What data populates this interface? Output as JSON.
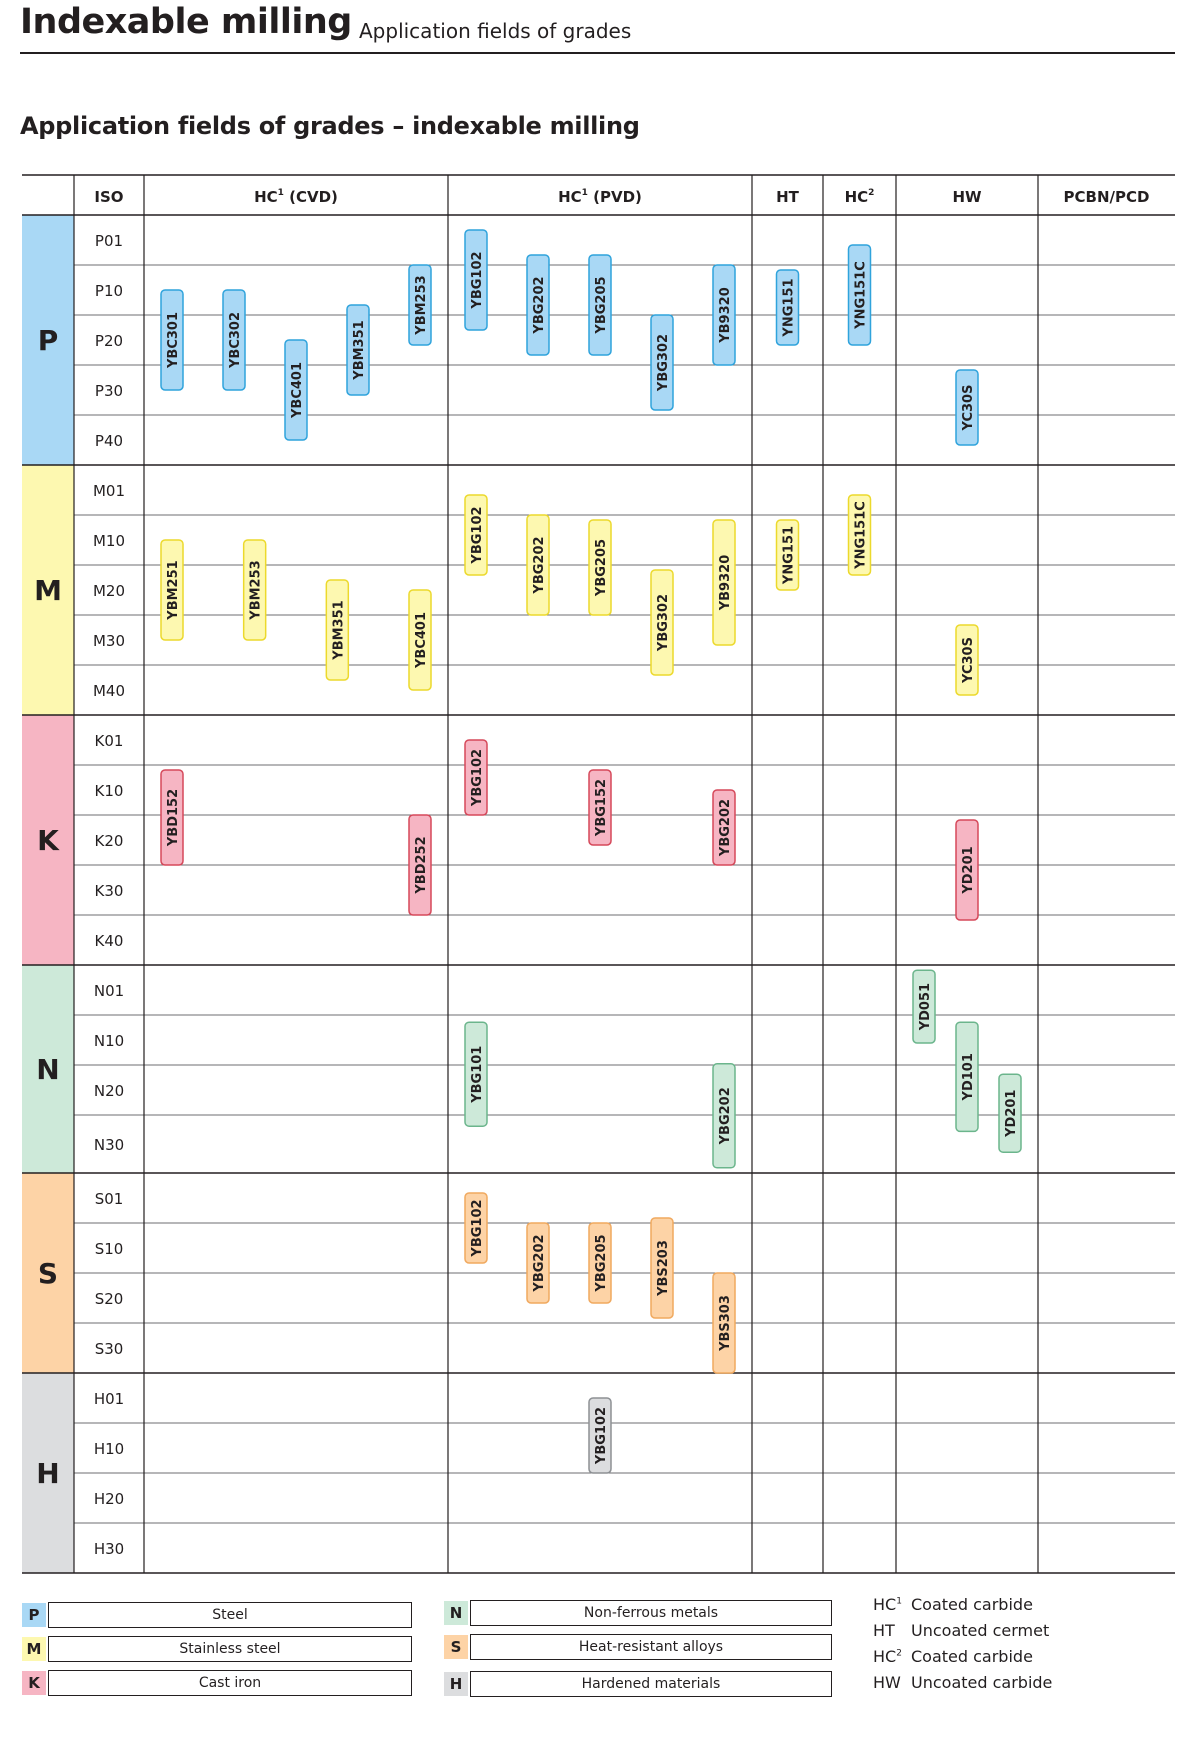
{
  "header": {
    "title": "Indexable milling",
    "subtitle": "Application fields of grades"
  },
  "section_title": "Application fields of grades – indexable milling",
  "colors": {
    "P": {
      "fill": "#a9d8f5",
      "stroke": "#2fa3dc"
    },
    "M": {
      "fill": "#fdf8b0",
      "stroke": "#ecd92c"
    },
    "K": {
      "fill": "#f6b5c3",
      "stroke": "#d5485a"
    },
    "N": {
      "fill": "#cde9d9",
      "stroke": "#6bb58c"
    },
    "S": {
      "fill": "#fdd3a6",
      "stroke": "#f0a95f"
    },
    "H": {
      "fill": "#dcdddf",
      "stroke": "#8d9094"
    }
  },
  "table": {
    "iso_header": "ISO",
    "columns": [
      {
        "label": "HC",
        "sup": "1",
        "suffix": " (CVD)"
      },
      {
        "label": "HC",
        "sup": "1",
        "suffix": " (PVD)"
      },
      {
        "label": "HT",
        "sup": "",
        "suffix": ""
      },
      {
        "label": "HC",
        "sup": "2",
        "suffix": ""
      },
      {
        "label": "HW",
        "sup": "",
        "suffix": ""
      },
      {
        "label": "PCBN/PCD",
        "sup": "",
        "suffix": ""
      }
    ],
    "groups": [
      {
        "letter": "P",
        "rows": [
          "P01",
          "P10",
          "P20",
          "P30",
          "P40"
        ]
      },
      {
        "letter": "M",
        "rows": [
          "M01",
          "M10",
          "M20",
          "M30",
          "M40"
        ]
      },
      {
        "letter": "K",
        "rows": [
          "K01",
          "K10",
          "K20",
          "K30",
          "K40"
        ]
      },
      {
        "letter": "N",
        "rows": [
          "N01",
          "N10",
          "N20",
          "N30"
        ]
      },
      {
        "letter": "S",
        "rows": [
          "S01",
          "S10",
          "S20",
          "S30"
        ]
      },
      {
        "letter": "H",
        "rows": [
          "H01",
          "H10",
          "H20",
          "H30"
        ]
      }
    ],
    "grades": [
      {
        "name": "YBC301",
        "group": "P",
        "col": 0,
        "start": 1.5,
        "end": 3.5
      },
      {
        "name": "YBC302",
        "group": "P",
        "col": 0,
        "start": 1.5,
        "end": 3.5
      },
      {
        "name": "YBC401",
        "group": "P",
        "col": 0,
        "start": 2.5,
        "end": 4.5
      },
      {
        "name": "YBM351",
        "group": "P",
        "col": 0,
        "start": 1.8,
        "end": 3.6
      },
      {
        "name": "YBM253",
        "group": "P",
        "col": 0,
        "start": 1.0,
        "end": 2.6
      },
      {
        "name": "YBG102",
        "group": "P",
        "col": 1,
        "start": 0.3,
        "end": 2.3
      },
      {
        "name": "YBG202",
        "group": "P",
        "col": 1,
        "start": 0.8,
        "end": 2.8
      },
      {
        "name": "YBG205",
        "group": "P",
        "col": 1,
        "start": 0.8,
        "end": 2.8
      },
      {
        "name": "YBG302",
        "group": "P",
        "col": 1,
        "start": 2.0,
        "end": 3.9
      },
      {
        "name": "YB9320",
        "group": "P",
        "col": 1,
        "start": 1.0,
        "end": 3.0
      },
      {
        "name": "YNG151",
        "group": "P",
        "col": 2,
        "start": 1.1,
        "end": 2.6
      },
      {
        "name": "YNG151C",
        "group": "P",
        "col": 3,
        "start": 0.6,
        "end": 2.6
      },
      {
        "name": "YC30S",
        "group": "P",
        "col": 4,
        "start": 3.1,
        "end": 4.6
      },
      {
        "name": "YBM251",
        "group": "M",
        "col": 0,
        "start": 1.5,
        "end": 3.5
      },
      {
        "name": "YBM253",
        "group": "M",
        "col": 0,
        "start": 1.5,
        "end": 3.5
      },
      {
        "name": "YBM351",
        "group": "M",
        "col": 0,
        "start": 2.3,
        "end": 4.3
      },
      {
        "name": "YBC401",
        "group": "M",
        "col": 0,
        "start": 2.5,
        "end": 4.5
      },
      {
        "name": "YBG102",
        "group": "M",
        "col": 1,
        "start": 0.6,
        "end": 2.2
      },
      {
        "name": "YBG202",
        "group": "M",
        "col": 1,
        "start": 1.0,
        "end": 3.0
      },
      {
        "name": "YBG205",
        "group": "M",
        "col": 1,
        "start": 1.1,
        "end": 3.0
      },
      {
        "name": "YBG302",
        "group": "M",
        "col": 1,
        "start": 2.1,
        "end": 4.2
      },
      {
        "name": "YB9320",
        "group": "M",
        "col": 1,
        "start": 1.1,
        "end": 3.6
      },
      {
        "name": "YNG151",
        "group": "M",
        "col": 2,
        "start": 1.1,
        "end": 2.5
      },
      {
        "name": "YNG151C",
        "group": "M",
        "col": 3,
        "start": 0.6,
        "end": 2.2
      },
      {
        "name": "YC30S",
        "group": "M",
        "col": 4,
        "start": 3.2,
        "end": 4.6
      },
      {
        "name": "YBD152",
        "group": "K",
        "col": 0,
        "start": 1.1,
        "end": 3.0
      },
      {
        "name": "YBD252",
        "group": "K",
        "col": 0,
        "start": 2.0,
        "end": 4.0
      },
      {
        "name": "YBG102",
        "group": "K",
        "col": 1,
        "start": 0.5,
        "end": 2.0
      },
      {
        "name": "YBG152",
        "group": "K",
        "col": 1,
        "start": 1.1,
        "end": 2.6
      },
      {
        "name": "YBG202",
        "group": "K",
        "col": 1,
        "start": 1.5,
        "end": 3.0
      },
      {
        "name": "YD201",
        "group": "K",
        "col": 4,
        "start": 2.1,
        "end": 4.1
      },
      {
        "name": "YD051",
        "group": "N",
        "col": 4,
        "start": 0.1,
        "end": 1.5
      },
      {
        "name": "YD101",
        "group": "N",
        "col": 4,
        "start": 1.1,
        "end": 3.2
      },
      {
        "name": "YD201",
        "group": "N",
        "col": 4,
        "start": 2.1,
        "end": 3.6
      },
      {
        "name": "YBG101",
        "group": "N",
        "col": 1,
        "start": 1.1,
        "end": 3.1
      },
      {
        "name": "YBG202",
        "group": "N",
        "col": 1,
        "start": 1.9,
        "end": 3.9
      },
      {
        "name": "YBG102",
        "group": "S",
        "col": 1,
        "start": 0.4,
        "end": 1.8
      },
      {
        "name": "YBG202",
        "group": "S",
        "col": 1,
        "start": 1.0,
        "end": 2.6
      },
      {
        "name": "YBG205",
        "group": "S",
        "col": 1,
        "start": 1.0,
        "end": 2.6
      },
      {
        "name": "YBS203",
        "group": "S",
        "col": 1,
        "start": 0.9,
        "end": 2.9
      },
      {
        "name": "YBS303",
        "group": "S",
        "col": 1,
        "start": 2.0,
        "end": 4.0
      },
      {
        "name": "YBG102",
        "group": "H",
        "col": 1,
        "start": 0.5,
        "end": 2.0
      }
    ]
  },
  "legend": [
    {
      "letter": "P",
      "label": "Steel"
    },
    {
      "letter": "M",
      "label": "Stainless steel"
    },
    {
      "letter": "K",
      "label": "Cast iron"
    },
    {
      "letter": "N",
      "label": "Non-ferrous metals"
    },
    {
      "letter": "S",
      "label": "Heat-resistant alloys"
    },
    {
      "letter": "H",
      "label": "Hardened materials"
    }
  ],
  "definitions": [
    {
      "abbr": "HC",
      "sup": "1",
      "text": "Coated carbide"
    },
    {
      "abbr": "HT",
      "sup": "",
      "text": "Uncoated cermet"
    },
    {
      "abbr": "HC",
      "sup": "2",
      "text": "Coated carbide"
    },
    {
      "abbr": "HW",
      "sup": "",
      "text": "Uncoated carbide"
    }
  ]
}
